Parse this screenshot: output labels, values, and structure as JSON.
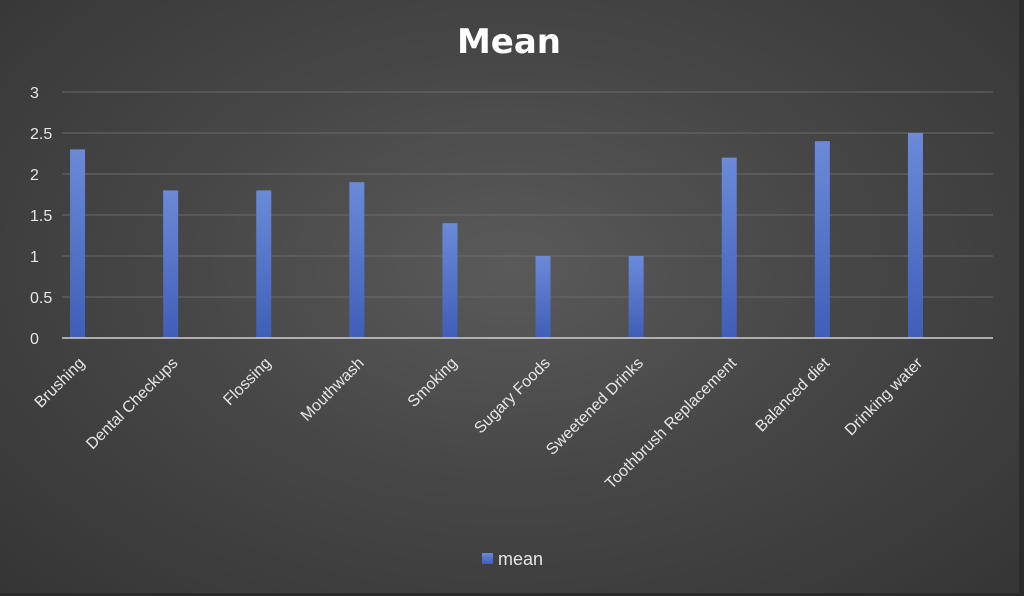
{
  "chart_data": {
    "type": "bar",
    "title": "Mean",
    "categories": [
      "Brushing",
      "Dental Checkups",
      "Flossing",
      "Mouthwash",
      "Smoking",
      "Sugary Foods",
      "Sweetened Drinks",
      "Toothbrush Replacement",
      "Balanced diet",
      "Drinking water"
    ],
    "series": [
      {
        "name": "mean",
        "values": [
          2.3,
          1.8,
          1.8,
          1.9,
          1.4,
          1.0,
          1.0,
          2.2,
          2.4,
          2.5
        ]
      }
    ],
    "ylim": [
      0,
      3
    ],
    "yticks": [
      "0",
      "0.5",
      "1",
      "1.5",
      "2",
      "2.5",
      "3"
    ],
    "xlabel": "",
    "ylabel": "",
    "grid": true,
    "legend_position": "bottom",
    "colors": {
      "bar": "#4f6fc4",
      "bar_light": "#6b8ad8",
      "background": "#474747",
      "text": "#e6e6e6"
    }
  }
}
